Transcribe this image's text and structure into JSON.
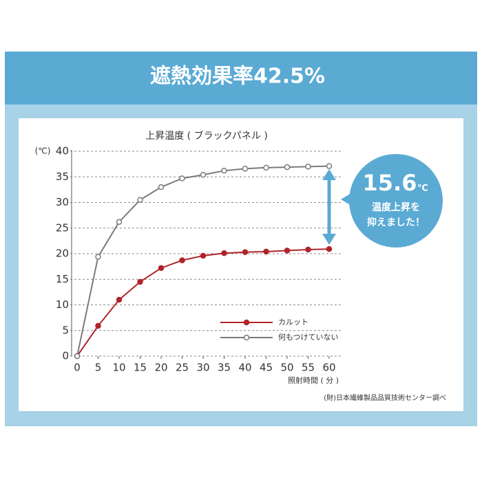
{
  "header": {
    "title": "遮熱効果率42.5%"
  },
  "chart_data": {
    "type": "line",
    "title": "上昇温度 ( ブラックパネル )",
    "y_unit": "(℃)",
    "x_label": "照射時間 ( 分 )",
    "x": [
      0,
      5,
      10,
      15,
      20,
      25,
      30,
      35,
      40,
      45,
      50,
      55,
      60
    ],
    "series": [
      {
        "name": "カルット",
        "color": "#b0232a",
        "marker_fill": "#b0232a",
        "values": [
          0,
          5.9,
          11,
          14.5,
          17.2,
          18.7,
          19.6,
          20.1,
          20.3,
          20.4,
          20.6,
          20.8,
          20.9
        ]
      },
      {
        "name": "何もつけていない",
        "color": "#7a7a7a",
        "marker_fill": "#ffffff",
        "values": [
          0,
          19.4,
          26.2,
          30.5,
          33,
          34.7,
          35.4,
          36.2,
          36.6,
          36.8,
          36.9,
          37,
          37.1
        ]
      }
    ],
    "xlim": [
      0,
      60
    ],
    "xticks": [
      0,
      5,
      10,
      15,
      20,
      25,
      30,
      35,
      40,
      45,
      50,
      55,
      60
    ],
    "ylim": [
      0,
      40
    ],
    "yticks": [
      0,
      5,
      10,
      15,
      20,
      25,
      30,
      35,
      40
    ],
    "grid": true
  },
  "annotation": {
    "value": "15.6",
    "unit": "℃",
    "lines": [
      "温度上昇を",
      "抑えました！"
    ]
  },
  "source": "(財)日本繊維製品品質技術センター調べ"
}
